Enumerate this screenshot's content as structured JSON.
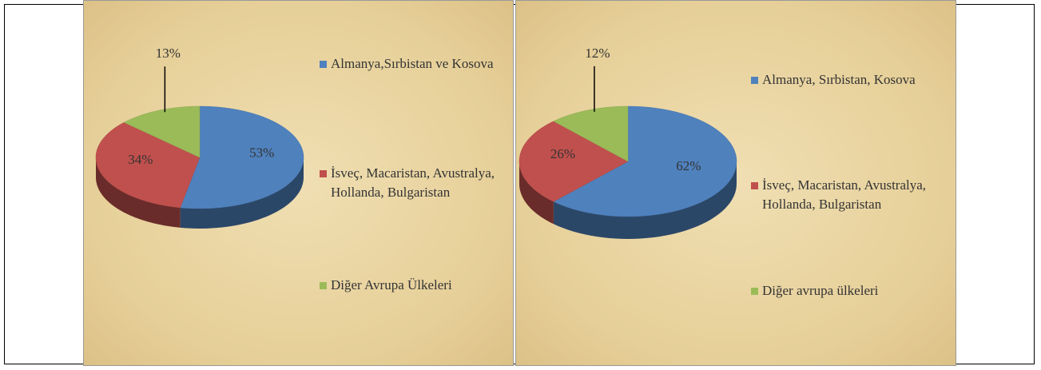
{
  "chart_data": [
    {
      "type": "pie",
      "categories": [
        "Almanya,Sırbistan ve Kosova",
        "İsveç, Macaristan, Avustralya, Hollanda, Bulgaristan",
        "Diğer Avrupa Ülkeleri"
      ],
      "values": [
        53,
        34,
        13
      ],
      "value_labels": [
        "53%",
        "34%",
        "13%"
      ],
      "colors": [
        "#4f81bd",
        "#c0504d",
        "#9bbb59"
      ],
      "legend": "right"
    },
    {
      "type": "pie",
      "categories": [
        "Almanya, Sırbistan, Kosova",
        "İsveç, Macaristan, Avustralya, Hollanda, Bulgaristan",
        "Diğer avrupa ülkeleri"
      ],
      "values": [
        62,
        26,
        12
      ],
      "value_labels": [
        "62%",
        "26%",
        "12%"
      ],
      "colors": [
        "#4f81bd",
        "#c0504d",
        "#9bbb59"
      ],
      "legend": "right"
    }
  ]
}
